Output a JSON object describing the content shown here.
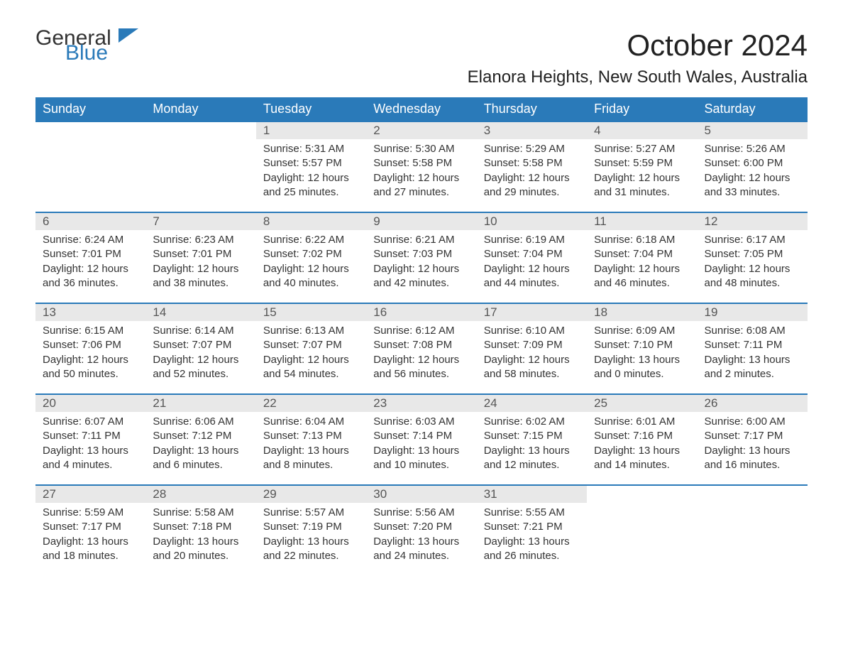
{
  "logo": {
    "text1": "General",
    "text2": "Blue",
    "color1": "#333333",
    "color2": "#2a7ab9"
  },
  "title": "October 2024",
  "location": "Elanora Heights, New South Wales, Australia",
  "columns": [
    "Sunday",
    "Monday",
    "Tuesday",
    "Wednesday",
    "Thursday",
    "Friday",
    "Saturday"
  ],
  "header_bg": "#2a7ab9",
  "header_fg": "#ffffff",
  "daynum_bg": "#e8e8e8",
  "row_border": "#2a7ab9",
  "weeks": [
    [
      null,
      null,
      {
        "n": "1",
        "sunrise": "5:31 AM",
        "sunset": "5:57 PM",
        "daylight": "12 hours and 25 minutes."
      },
      {
        "n": "2",
        "sunrise": "5:30 AM",
        "sunset": "5:58 PM",
        "daylight": "12 hours and 27 minutes."
      },
      {
        "n": "3",
        "sunrise": "5:29 AM",
        "sunset": "5:58 PM",
        "daylight": "12 hours and 29 minutes."
      },
      {
        "n": "4",
        "sunrise": "5:27 AM",
        "sunset": "5:59 PM",
        "daylight": "12 hours and 31 minutes."
      },
      {
        "n": "5",
        "sunrise": "5:26 AM",
        "sunset": "6:00 PM",
        "daylight": "12 hours and 33 minutes."
      }
    ],
    [
      {
        "n": "6",
        "sunrise": "6:24 AM",
        "sunset": "7:01 PM",
        "daylight": "12 hours and 36 minutes."
      },
      {
        "n": "7",
        "sunrise": "6:23 AM",
        "sunset": "7:01 PM",
        "daylight": "12 hours and 38 minutes."
      },
      {
        "n": "8",
        "sunrise": "6:22 AM",
        "sunset": "7:02 PM",
        "daylight": "12 hours and 40 minutes."
      },
      {
        "n": "9",
        "sunrise": "6:21 AM",
        "sunset": "7:03 PM",
        "daylight": "12 hours and 42 minutes."
      },
      {
        "n": "10",
        "sunrise": "6:19 AM",
        "sunset": "7:04 PM",
        "daylight": "12 hours and 44 minutes."
      },
      {
        "n": "11",
        "sunrise": "6:18 AM",
        "sunset": "7:04 PM",
        "daylight": "12 hours and 46 minutes."
      },
      {
        "n": "12",
        "sunrise": "6:17 AM",
        "sunset": "7:05 PM",
        "daylight": "12 hours and 48 minutes."
      }
    ],
    [
      {
        "n": "13",
        "sunrise": "6:15 AM",
        "sunset": "7:06 PM",
        "daylight": "12 hours and 50 minutes."
      },
      {
        "n": "14",
        "sunrise": "6:14 AM",
        "sunset": "7:07 PM",
        "daylight": "12 hours and 52 minutes."
      },
      {
        "n": "15",
        "sunrise": "6:13 AM",
        "sunset": "7:07 PM",
        "daylight": "12 hours and 54 minutes."
      },
      {
        "n": "16",
        "sunrise": "6:12 AM",
        "sunset": "7:08 PM",
        "daylight": "12 hours and 56 minutes."
      },
      {
        "n": "17",
        "sunrise": "6:10 AM",
        "sunset": "7:09 PM",
        "daylight": "12 hours and 58 minutes."
      },
      {
        "n": "18",
        "sunrise": "6:09 AM",
        "sunset": "7:10 PM",
        "daylight": "13 hours and 0 minutes."
      },
      {
        "n": "19",
        "sunrise": "6:08 AM",
        "sunset": "7:11 PM",
        "daylight": "13 hours and 2 minutes."
      }
    ],
    [
      {
        "n": "20",
        "sunrise": "6:07 AM",
        "sunset": "7:11 PM",
        "daylight": "13 hours and 4 minutes."
      },
      {
        "n": "21",
        "sunrise": "6:06 AM",
        "sunset": "7:12 PM",
        "daylight": "13 hours and 6 minutes."
      },
      {
        "n": "22",
        "sunrise": "6:04 AM",
        "sunset": "7:13 PM",
        "daylight": "13 hours and 8 minutes."
      },
      {
        "n": "23",
        "sunrise": "6:03 AM",
        "sunset": "7:14 PM",
        "daylight": "13 hours and 10 minutes."
      },
      {
        "n": "24",
        "sunrise": "6:02 AM",
        "sunset": "7:15 PM",
        "daylight": "13 hours and 12 minutes."
      },
      {
        "n": "25",
        "sunrise": "6:01 AM",
        "sunset": "7:16 PM",
        "daylight": "13 hours and 14 minutes."
      },
      {
        "n": "26",
        "sunrise": "6:00 AM",
        "sunset": "7:17 PM",
        "daylight": "13 hours and 16 minutes."
      }
    ],
    [
      {
        "n": "27",
        "sunrise": "5:59 AM",
        "sunset": "7:17 PM",
        "daylight": "13 hours and 18 minutes."
      },
      {
        "n": "28",
        "sunrise": "5:58 AM",
        "sunset": "7:18 PM",
        "daylight": "13 hours and 20 minutes."
      },
      {
        "n": "29",
        "sunrise": "5:57 AM",
        "sunset": "7:19 PM",
        "daylight": "13 hours and 22 minutes."
      },
      {
        "n": "30",
        "sunrise": "5:56 AM",
        "sunset": "7:20 PM",
        "daylight": "13 hours and 24 minutes."
      },
      {
        "n": "31",
        "sunrise": "5:55 AM",
        "sunset": "7:21 PM",
        "daylight": "13 hours and 26 minutes."
      },
      null,
      null
    ]
  ],
  "labels": {
    "sunrise": "Sunrise: ",
    "sunset": "Sunset: ",
    "daylight": "Daylight: "
  }
}
